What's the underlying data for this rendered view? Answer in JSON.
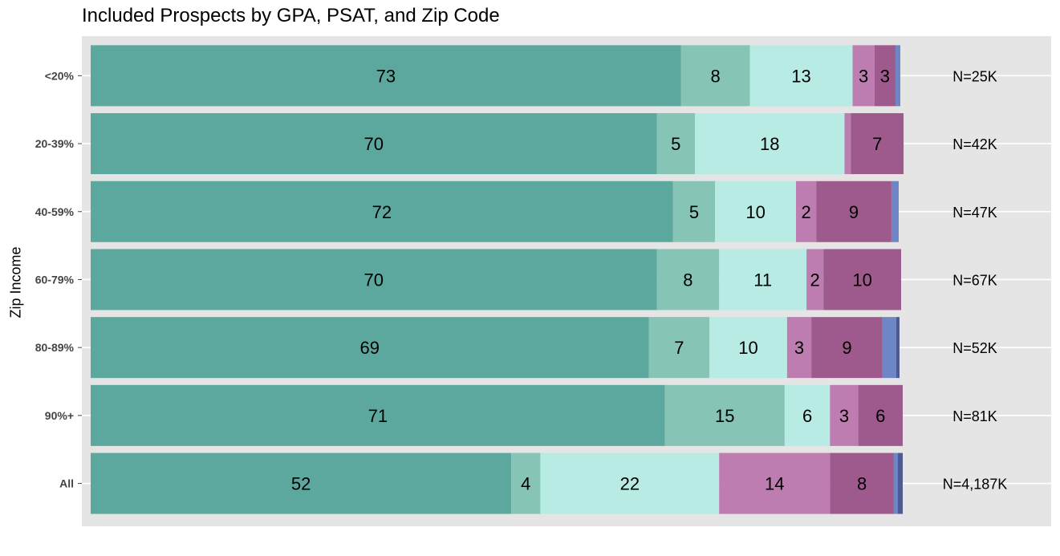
{
  "chart_data": {
    "type": "bar",
    "orientation": "horizontal",
    "stacked": true,
    "title": "Included Prospects by GPA, PSAT, and Zip Code",
    "xlabel": "",
    "ylabel": "Zip Income",
    "categories": [
      "<20%",
      "20-39%",
      "40-59%",
      "60-79%",
      "80-89%",
      "90%+",
      "All"
    ],
    "n_labels": [
      "N=25K",
      "N=42K",
      "N=47K",
      "N=67K",
      "N=52K",
      "N=81K",
      "N=4,187K"
    ],
    "xlim": [
      0,
      100
    ],
    "grid": true,
    "legend": "none",
    "series": [
      {
        "color": "#5da89e",
        "values": [
          73,
          70,
          72,
          70,
          69,
          71,
          52
        ],
        "labels": [
          "73",
          "70",
          "72",
          "70",
          "69",
          "71",
          "52"
        ]
      },
      {
        "color": "#86c4b5",
        "values": [
          8.5,
          4.7,
          5.2,
          7.7,
          7.5,
          14.8,
          3.6
        ],
        "labels": [
          "8",
          "5",
          "5",
          "8",
          "7",
          "15",
          "4"
        ]
      },
      {
        "color": "#b8ebe4",
        "values": [
          12.7,
          18.5,
          10,
          10.8,
          9.6,
          5.6,
          22.1
        ],
        "labels": [
          "13",
          "18",
          "10",
          "11",
          "10",
          "6",
          "22"
        ]
      },
      {
        "color": "#bd7db1",
        "values": [
          2.7,
          0.8,
          2.5,
          2.1,
          3,
          3.5,
          13.7
        ],
        "labels": [
          "3",
          "",
          "2",
          "2",
          "3",
          "3",
          "14"
        ]
      },
      {
        "color": "#9e5a8c",
        "values": [
          2.6,
          6.5,
          9.3,
          9.6,
          8.8,
          5.5,
          7.9
        ],
        "labels": [
          "3",
          "7",
          "9",
          "10",
          "9",
          "6",
          "8"
        ]
      },
      {
        "color": "#6e86c6",
        "values": [
          0.6,
          0,
          0.9,
          0,
          1.7,
          0,
          0.5
        ],
        "labels": [
          "",
          "",
          "",
          "",
          "",
          "",
          ""
        ]
      },
      {
        "color": "#4e5a90",
        "values": [
          0,
          0,
          0,
          0,
          0.4,
          0,
          0.6
        ],
        "labels": [
          "",
          "",
          "",
          "",
          "",
          "",
          ""
        ]
      }
    ]
  },
  "colors": {
    "panel_background": "#e5e5e5",
    "gridline": "#ffffff",
    "axis_text": "#444444"
  }
}
